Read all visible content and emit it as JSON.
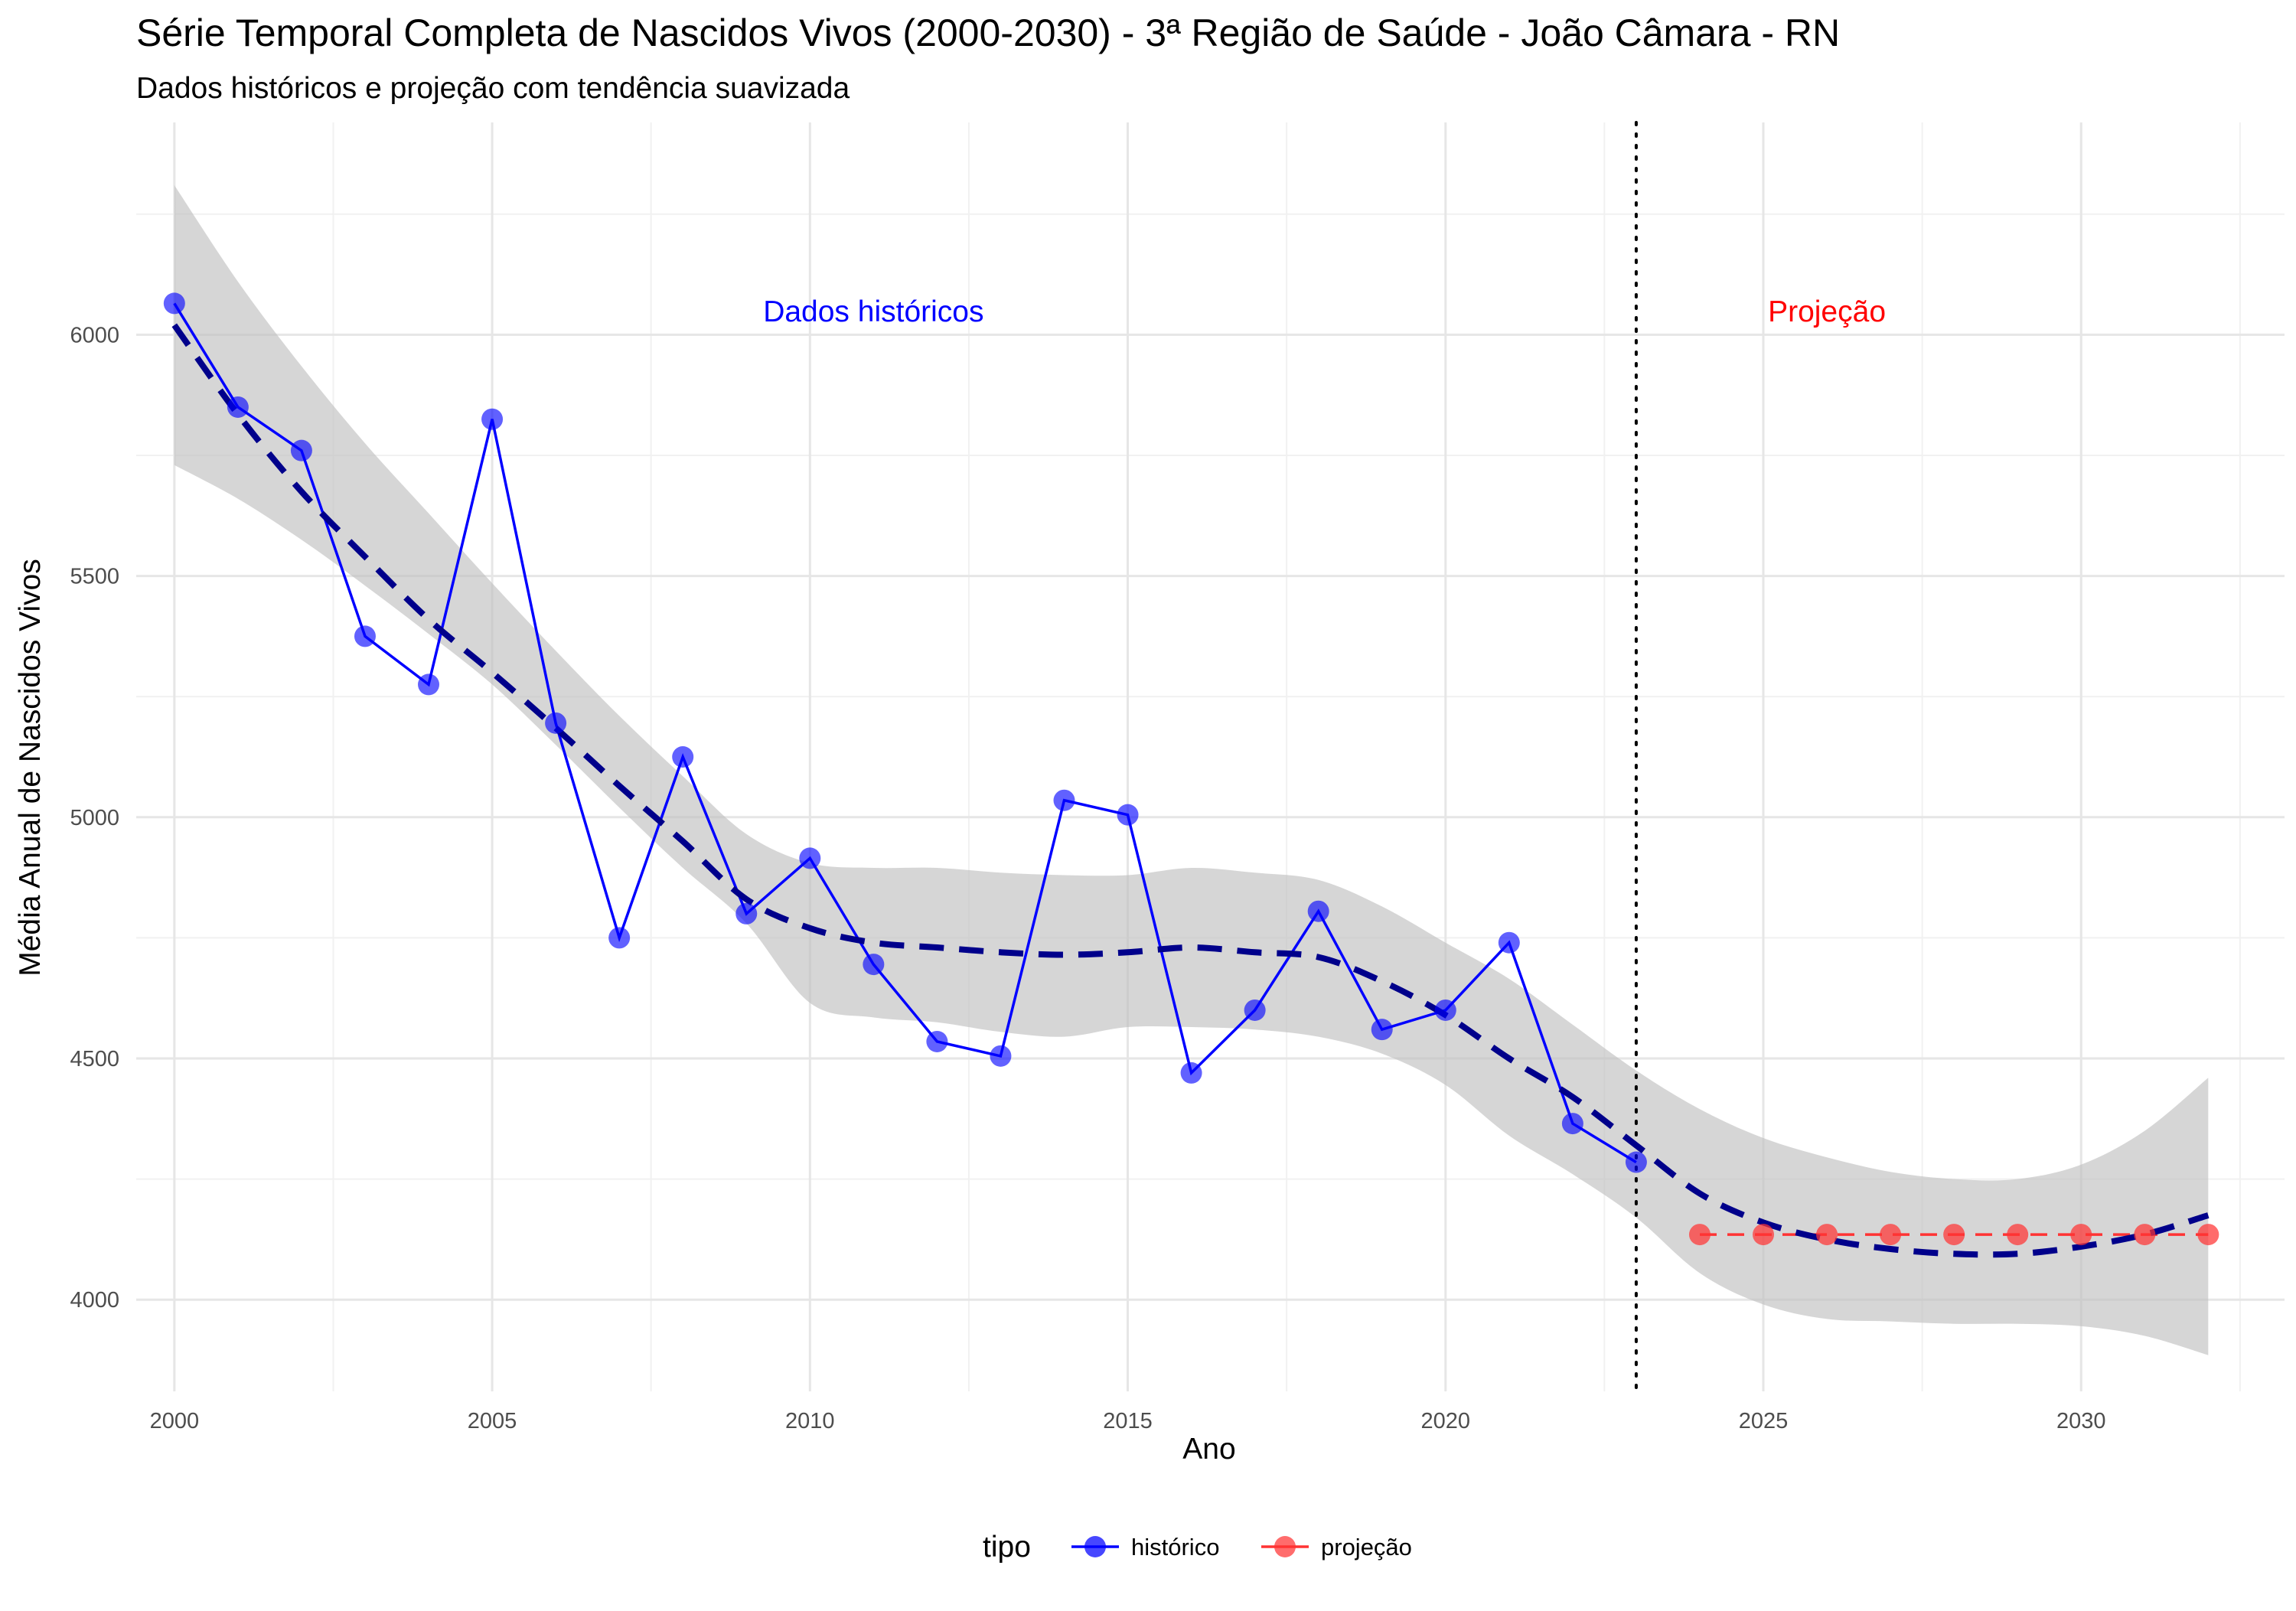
{
  "chart_data": {
    "type": "line",
    "title": "Série Temporal Completa de Nascidos Vivos (2000-2030) -  3ª Região de Saúde - João Câmara - RN",
    "subtitle": "Dados históricos e projeção com tendência suavizada",
    "xlabel": "Ano",
    "ylabel": "Média Anual de Nascidos Vivos",
    "xlim": [
      1999.4,
      2033.2
    ],
    "ylim": [
      3810,
      6440
    ],
    "x_ticks": [
      2000,
      2005,
      2010,
      2015,
      2020,
      2025,
      2030
    ],
    "y_ticks": [
      4000,
      4500,
      5000,
      5500,
      6000
    ],
    "grid": true,
    "legend": {
      "title": "tipo",
      "placement": "bottom",
      "entries": [
        {
          "label": "histórico",
          "color": "#0000ff"
        },
        {
          "label": "projeção",
          "color": "#ff3333"
        }
      ]
    },
    "annotations": [
      {
        "text": "Dados históricos",
        "x": 2011,
        "y": 6050,
        "color": "#0000ff"
      },
      {
        "text": "Projeção",
        "x": 2026,
        "y": 6050,
        "color": "#ff0000"
      }
    ],
    "vline": {
      "x": 2023,
      "style": "dotted",
      "color": "#000000"
    },
    "series": [
      {
        "name": "histórico",
        "color": "#0000ff",
        "x": [
          2000,
          2001,
          2002,
          2003,
          2004,
          2005,
          2006,
          2007,
          2008,
          2009,
          2010,
          2011,
          2012,
          2013,
          2014,
          2015,
          2016,
          2017,
          2018,
          2019,
          2020,
          2021,
          2022,
          2023
        ],
        "values": [
          6065,
          5850,
          5760,
          5375,
          5275,
          5825,
          5195,
          4750,
          5125,
          4800,
          4915,
          4695,
          4535,
          4505,
          5035,
          5005,
          4470,
          4600,
          4805,
          4560,
          4600,
          4740,
          4365,
          4285
        ]
      },
      {
        "name": "projeção",
        "color": "#ff3333",
        "x": [
          2024,
          2025,
          2026,
          2027,
          2028,
          2029,
          2030,
          2031,
          2032
        ],
        "values": [
          4135,
          4135,
          4135,
          4135,
          4135,
          4135,
          4135,
          4135,
          4135
        ]
      }
    ],
    "trend": {
      "color": "#00008b",
      "style": "dashed",
      "x": [
        2000,
        2001,
        2002,
        2003,
        2004,
        2005,
        2006,
        2007,
        2008,
        2009,
        2010,
        2011,
        2012,
        2013,
        2014,
        2015,
        2016,
        2017,
        2018,
        2019,
        2020,
        2021,
        2022,
        2023,
        2024,
        2025,
        2026,
        2027,
        2028,
        2029,
        2030,
        2031,
        2032
      ],
      "values": [
        6020,
        5835,
        5675,
        5540,
        5410,
        5300,
        5185,
        5065,
        4950,
        4830,
        4770,
        4740,
        4730,
        4720,
        4715,
        4720,
        4730,
        4720,
        4710,
        4660,
        4590,
        4500,
        4420,
        4320,
        4220,
        4160,
        4125,
        4105,
        4095,
        4095,
        4110,
        4135,
        4175
      ],
      "band_upper": [
        6310,
        6110,
        5935,
        5775,
        5630,
        5485,
        5345,
        5210,
        5085,
        4965,
        4905,
        4895,
        4895,
        4885,
        4880,
        4880,
        4895,
        4885,
        4870,
        4815,
        4740,
        4665,
        4570,
        4475,
        4395,
        4335,
        4295,
        4265,
        4250,
        4250,
        4280,
        4350,
        4460
      ],
      "band_lower": [
        5730,
        5660,
        5575,
        5480,
        5380,
        5275,
        5150,
        5020,
        4895,
        4780,
        4615,
        4585,
        4575,
        4555,
        4545,
        4565,
        4565,
        4560,
        4545,
        4510,
        4445,
        4340,
        4260,
        4170,
        4055,
        3990,
        3960,
        3955,
        3950,
        3950,
        3945,
        3925,
        3885
      ]
    }
  }
}
